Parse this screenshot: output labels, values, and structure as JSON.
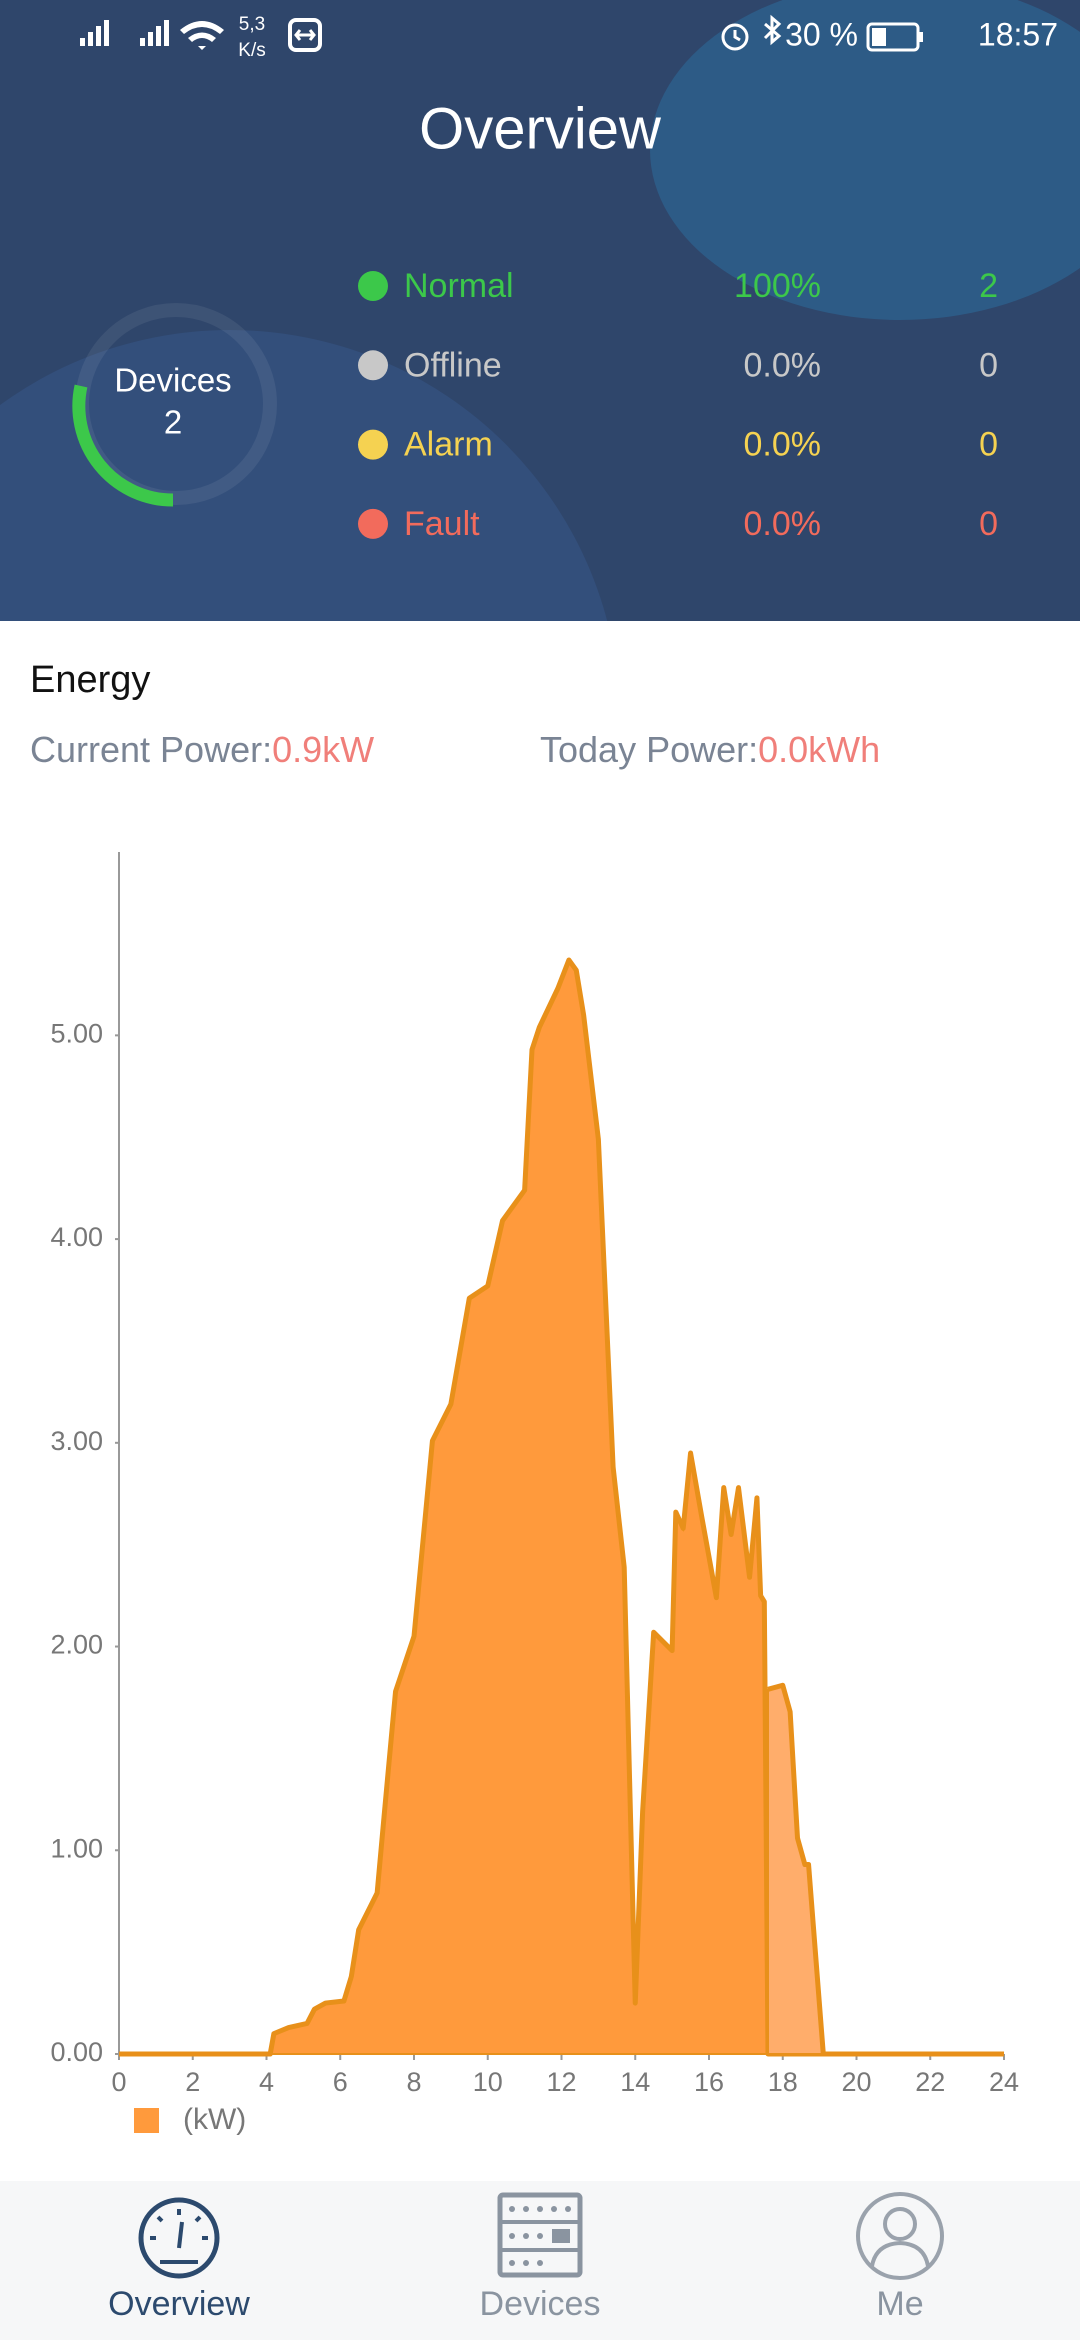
{
  "status_bar": {
    "speed": "5,3",
    "speed_unit": "K/s",
    "battery": "30 %",
    "time": "18:57"
  },
  "header": {
    "title": "Overview"
  },
  "devices": {
    "label": "Devices",
    "count": 2
  },
  "status": [
    {
      "label": "Normal",
      "percent": "100%",
      "count": 2,
      "color": "#3cc84a"
    },
    {
      "label": "Offline",
      "percent": "0.0%",
      "count": 0,
      "color": "#c8c8c8"
    },
    {
      "label": "Alarm",
      "percent": "0.0%",
      "count": 0,
      "color": "#f5d251"
    },
    {
      "label": "Fault",
      "percent": "0.0%",
      "count": 0,
      "color": "#f26b5c"
    }
  ],
  "energy": {
    "title": "Energy",
    "current_label": "Current Power:",
    "current_value": "0.9kW",
    "today_label": "Today Power:",
    "today_value": "0.0kWh"
  },
  "chart_data": {
    "type": "area",
    "x": [
      0,
      4.1,
      4.2,
      4.6,
      5.1,
      5.3,
      5.6,
      6.1,
      6.3,
      6.5,
      7.0,
      7.2,
      7.5,
      8.0,
      8.5,
      9.0,
      9.5,
      10.0,
      10.4,
      11.0,
      11.2,
      11.4,
      11.9,
      12.2,
      12.4,
      12.6,
      13.0,
      13.4,
      13.7,
      14.0,
      14.2,
      14.5,
      15.0,
      15.1,
      15.3,
      15.5,
      15.8,
      16.2,
      16.4,
      16.6,
      16.8,
      17.1,
      17.3,
      17.4,
      17.5,
      17.6,
      18.0,
      18.2,
      18.4,
      18.6,
      18.7,
      19.1,
      24
    ],
    "series": [
      {
        "name": "(kW)",
        "color": "#ff9a3c",
        "line_color": "#e8901a",
        "values": [
          0,
          0,
          0.1,
          0.13,
          0.15,
          0.22,
          0.25,
          0.26,
          0.38,
          0.61,
          0.79,
          1.19,
          1.78,
          2.05,
          3.01,
          3.19,
          3.71,
          3.77,
          4.09,
          4.24,
          4.93,
          5.04,
          5.23,
          5.37,
          5.32,
          5.1,
          4.49,
          2.88,
          2.39,
          0.25,
          1.19,
          2.07,
          1.98,
          2.66,
          2.58,
          2.95,
          2.64,
          2.24,
          2.78,
          2.55,
          2.78,
          2.34,
          2.73,
          2.25,
          2.22,
          0,
          0,
          0,
          0,
          0,
          0,
          0,
          0
        ]
      },
      {
        "color": "#ffad6b",
        "line_color": "#e8901a",
        "values": [
          null,
          null,
          null,
          null,
          null,
          null,
          null,
          null,
          null,
          null,
          null,
          null,
          null,
          null,
          null,
          null,
          null,
          null,
          null,
          null,
          null,
          null,
          null,
          null,
          null,
          null,
          null,
          null,
          null,
          null,
          null,
          null,
          null,
          null,
          null,
          null,
          null,
          null,
          null,
          null,
          null,
          null,
          null,
          null,
          null,
          1.79,
          1.81,
          1.68,
          1.06,
          0.93,
          0.93,
          0,
          null
        ]
      }
    ],
    "xlim": [
      0,
      24
    ],
    "xticks": [
      0,
      2,
      4,
      6,
      8,
      10,
      12,
      14,
      16,
      18,
      20,
      22,
      24
    ],
    "ylim": [
      0,
      5.9
    ],
    "yticks": [
      {
        "value": 0,
        "label": "0.00"
      },
      {
        "value": 1,
        "label": "1.00"
      },
      {
        "value": 2,
        "label": "2.00"
      },
      {
        "value": 3,
        "label": "3.00"
      },
      {
        "value": 4,
        "label": "4.00"
      },
      {
        "value": 5,
        "label": "5.00"
      }
    ]
  },
  "nav": [
    {
      "label": "Overview",
      "active": true
    },
    {
      "label": "Devices",
      "active": false
    },
    {
      "label": "Me",
      "active": false
    }
  ]
}
